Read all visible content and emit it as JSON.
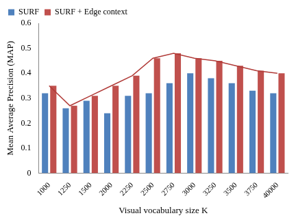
{
  "chart_data": {
    "type": "bar",
    "x_label": "Visual vocabulary size K",
    "y_label": "Mean Average Precision (MAP)",
    "categories": [
      "1000",
      "1250",
      "1500",
      "2000",
      "2250",
      "2500",
      "2750",
      "3000",
      "3250",
      "3500",
      "3750",
      "40000"
    ],
    "series": [
      {
        "name": "SURF",
        "color": "#4f81bd",
        "values": [
          0.32,
          0.26,
          0.29,
          0.24,
          0.31,
          0.32,
          0.36,
          0.4,
          0.38,
          0.36,
          0.33,
          0.32
        ]
      },
      {
        "name": "SURF + Edge context",
        "color": "#c0504d",
        "values": [
          0.35,
          0.27,
          0.31,
          0.35,
          0.39,
          0.46,
          0.48,
          0.46,
          0.45,
          0.43,
          0.41,
          0.4
        ]
      },
      {
        "type": "line",
        "color": "#b03a37",
        "values": [
          0.35,
          0.27,
          0.31,
          0.35,
          0.39,
          0.46,
          0.48,
          0.46,
          0.45,
          0.43,
          0.41,
          0.4
        ]
      }
    ],
    "ylim": [
      0,
      0.6
    ],
    "yticks": [
      0,
      0.1,
      0.2,
      0.3,
      0.4,
      0.5,
      0.6
    ],
    "grid": false,
    "legend": "upper left"
  }
}
